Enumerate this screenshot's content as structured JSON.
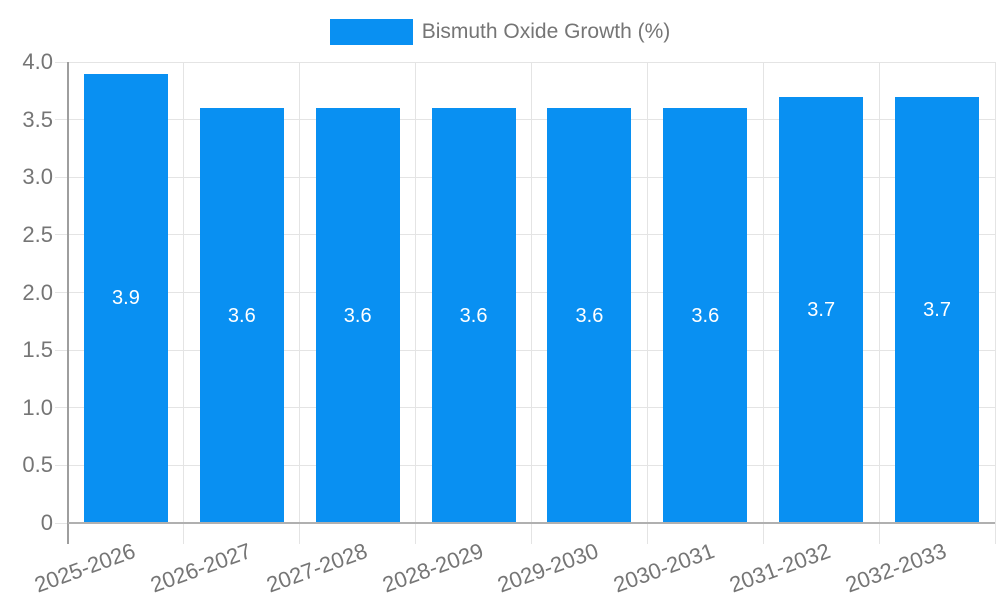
{
  "legend": {
    "label": "Bismuth Oxide Growth (%)"
  },
  "chart_data": {
    "type": "bar",
    "title": "",
    "xlabel": "",
    "ylabel": "",
    "legend_entries": [
      "Bismuth Oxide Growth (%)"
    ],
    "legend_position": "top-center",
    "categories": [
      "2025-2026",
      "2026-2027",
      "2027-2028",
      "2028-2029",
      "2029-2030",
      "2030-2031",
      "2031-2032",
      "2032-2033"
    ],
    "values": [
      3.9,
      3.6,
      3.6,
      3.6,
      3.6,
      3.6,
      3.7,
      3.7
    ],
    "bar_labels": [
      "3.9",
      "3.6",
      "3.6",
      "3.6",
      "3.6",
      "3.6",
      "3.7",
      "3.7"
    ],
    "ylim": [
      0,
      4
    ],
    "ytick_step": 0.5,
    "ytick_labels": [
      "0",
      "0.5",
      "1.0",
      "1.5",
      "2.0",
      "2.5",
      "3.0",
      "3.5",
      "4.0"
    ],
    "grid": true,
    "colors": {
      "bar": "#0990f2",
      "bar_label": "#ffffff",
      "axis_text": "#757575",
      "grid_line": "#e4e4e4",
      "axis_line": "#9e9e9e",
      "baseline": "#b0b0b0",
      "background": "#ffffff"
    }
  }
}
